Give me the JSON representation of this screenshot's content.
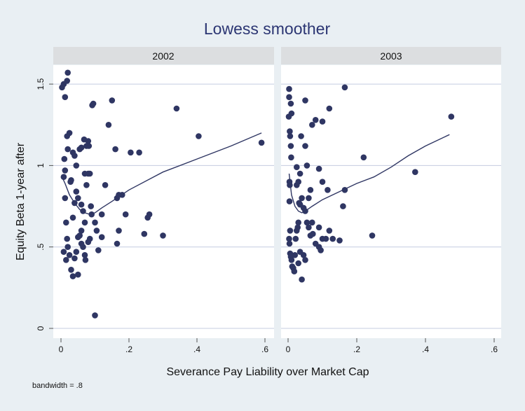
{
  "colors": {
    "outer_bg": "#e9eff3",
    "panel_bg": "#ffffff",
    "strip_bg": "#dcdee0",
    "grid": "#c4cce0",
    "marker": "#2f3663",
    "line": "#2f3663",
    "title": "#2c3673",
    "text": "#111111"
  },
  "chart_data": {
    "type": "scatter",
    "title": "Lowess smoother",
    "xlabel": "Severance Pay Liability over Market Cap",
    "ylabel": "Equity Beta 1-year after",
    "note": "bandwidth = .8",
    "xlim": [
      0,
      0.6
    ],
    "ylim": [
      0,
      1.6
    ],
    "xticks": [
      0,
      0.2,
      0.4,
      0.6
    ],
    "xtick_labels": [
      "0",
      ".2",
      ".4",
      ".6"
    ],
    "yticks": [
      0,
      0.5,
      1,
      1.5
    ],
    "ytick_labels": [
      "0",
      ".5",
      "1",
      "1.5"
    ],
    "grid": true,
    "panels": [
      {
        "label": "2002",
        "points": [
          [
            0.003,
            1.48
          ],
          [
            0.008,
            1.5
          ],
          [
            0.012,
            1.42
          ],
          [
            0.018,
            1.52
          ],
          [
            0.02,
            1.57
          ],
          [
            0.025,
            1.2
          ],
          [
            0.018,
            1.18
          ],
          [
            0.02,
            1.1
          ],
          [
            0.01,
            1.04
          ],
          [
            0.012,
            0.97
          ],
          [
            0.008,
            0.93
          ],
          [
            0.012,
            0.8
          ],
          [
            0.015,
            0.65
          ],
          [
            0.018,
            0.55
          ],
          [
            0.02,
            0.5
          ],
          [
            0.025,
            0.45
          ],
          [
            0.008,
            0.47
          ],
          [
            0.015,
            0.42
          ],
          [
            0.03,
            0.36
          ],
          [
            0.035,
            0.32
          ],
          [
            0.04,
            0.43
          ],
          [
            0.045,
            0.47
          ],
          [
            0.05,
            0.56
          ],
          [
            0.055,
            0.57
          ],
          [
            0.06,
            0.52
          ],
          [
            0.05,
            0.33
          ],
          [
            0.035,
            0.68
          ],
          [
            0.04,
            0.77
          ],
          [
            0.05,
            0.8
          ],
          [
            0.06,
            0.76
          ],
          [
            0.065,
            0.72
          ],
          [
            0.045,
            0.84
          ],
          [
            0.03,
            0.91
          ],
          [
            0.028,
            0.9
          ],
          [
            0.035,
            1.08
          ],
          [
            0.04,
            1.06
          ],
          [
            0.045,
            1.0
          ],
          [
            0.055,
            1.1
          ],
          [
            0.06,
            1.11
          ],
          [
            0.068,
            1.16
          ],
          [
            0.075,
            1.12
          ],
          [
            0.08,
            1.15
          ],
          [
            0.082,
            1.12
          ],
          [
            0.07,
            0.95
          ],
          [
            0.075,
            0.88
          ],
          [
            0.08,
            0.95
          ],
          [
            0.085,
            0.95
          ],
          [
            0.088,
            0.75
          ],
          [
            0.09,
            0.7
          ],
          [
            0.07,
            0.65
          ],
          [
            0.06,
            0.6
          ],
          [
            0.065,
            0.5
          ],
          [
            0.07,
            0.45
          ],
          [
            0.072,
            0.42
          ],
          [
            0.08,
            0.53
          ],
          [
            0.085,
            0.55
          ],
          [
            0.1,
            0.65
          ],
          [
            0.105,
            0.6
          ],
          [
            0.11,
            0.48
          ],
          [
            0.12,
            0.56
          ],
          [
            0.12,
            0.7
          ],
          [
            0.095,
            1.38
          ],
          [
            0.092,
            1.37
          ],
          [
            0.13,
            0.88
          ],
          [
            0.14,
            1.25
          ],
          [
            0.15,
            1.4
          ],
          [
            0.16,
            1.1
          ],
          [
            0.165,
            0.8
          ],
          [
            0.17,
            0.82
          ],
          [
            0.165,
            0.52
          ],
          [
            0.17,
            0.6
          ],
          [
            0.18,
            0.82
          ],
          [
            0.19,
            0.7
          ],
          [
            0.205,
            1.08
          ],
          [
            0.23,
            1.08
          ],
          [
            0.245,
            0.58
          ],
          [
            0.255,
            0.68
          ],
          [
            0.26,
            0.7
          ],
          [
            0.3,
            0.57
          ],
          [
            0.34,
            1.35
          ],
          [
            0.405,
            1.18
          ],
          [
            0.59,
            1.14
          ],
          [
            0.1,
            0.08
          ]
        ],
        "lowess": [
          [
            0.003,
            0.93
          ],
          [
            0.012,
            0.89
          ],
          [
            0.025,
            0.82
          ],
          [
            0.04,
            0.77
          ],
          [
            0.055,
            0.73
          ],
          [
            0.07,
            0.71
          ],
          [
            0.085,
            0.7
          ],
          [
            0.1,
            0.71
          ],
          [
            0.12,
            0.74
          ],
          [
            0.15,
            0.78
          ],
          [
            0.2,
            0.85
          ],
          [
            0.3,
            0.96
          ],
          [
            0.4,
            1.04
          ],
          [
            0.5,
            1.12
          ],
          [
            0.59,
            1.2
          ]
        ]
      },
      {
        "label": "2003",
        "points": [
          [
            0.003,
            1.47
          ],
          [
            0.003,
            1.42
          ],
          [
            0.008,
            1.38
          ],
          [
            0.01,
            1.32
          ],
          [
            0.002,
            1.3
          ],
          [
            0.005,
            1.21
          ],
          [
            0.006,
            1.18
          ],
          [
            0.008,
            1.12
          ],
          [
            0.009,
            1.05
          ],
          [
            0.004,
            0.9
          ],
          [
            0.005,
            0.88
          ],
          [
            0.004,
            0.78
          ],
          [
            0.006,
            0.6
          ],
          [
            0.003,
            0.55
          ],
          [
            0.004,
            0.52
          ],
          [
            0.006,
            0.46
          ],
          [
            0.008,
            0.44
          ],
          [
            0.01,
            0.42
          ],
          [
            0.012,
            0.38
          ],
          [
            0.015,
            0.37
          ],
          [
            0.018,
            0.35
          ],
          [
            0.02,
            0.45
          ],
          [
            0.022,
            0.55
          ],
          [
            0.025,
            0.6
          ],
          [
            0.028,
            0.62
          ],
          [
            0.03,
            0.65
          ],
          [
            0.032,
            0.77
          ],
          [
            0.035,
            0.76
          ],
          [
            0.04,
            0.8
          ],
          [
            0.045,
            0.74
          ],
          [
            0.05,
            0.72
          ],
          [
            0.055,
            0.65
          ],
          [
            0.06,
            0.62
          ],
          [
            0.025,
            0.88
          ],
          [
            0.03,
            0.9
          ],
          [
            0.035,
            0.95
          ],
          [
            0.025,
            0.99
          ],
          [
            0.038,
            1.18
          ],
          [
            0.05,
            1.12
          ],
          [
            0.055,
            1.0
          ],
          [
            0.05,
            1.4
          ],
          [
            0.07,
            1.25
          ],
          [
            0.08,
            1.28
          ],
          [
            0.1,
            1.27
          ],
          [
            0.12,
            1.35
          ],
          [
            0.09,
            0.98
          ],
          [
            0.1,
            0.9
          ],
          [
            0.115,
            0.85
          ],
          [
            0.08,
            0.52
          ],
          [
            0.09,
            0.5
          ],
          [
            0.1,
            0.55
          ],
          [
            0.11,
            0.55
          ],
          [
            0.12,
            0.6
          ],
          [
            0.13,
            0.55
          ],
          [
            0.15,
            0.54
          ],
          [
            0.16,
            0.75
          ],
          [
            0.165,
            0.85
          ],
          [
            0.165,
            1.48
          ],
          [
            0.22,
            1.05
          ],
          [
            0.245,
            0.57
          ],
          [
            0.37,
            0.96
          ],
          [
            0.475,
            1.3
          ],
          [
            0.045,
            0.45
          ],
          [
            0.035,
            0.47
          ],
          [
            0.03,
            0.4
          ],
          [
            0.05,
            0.42
          ],
          [
            0.065,
            0.57
          ],
          [
            0.07,
            0.65
          ],
          [
            0.072,
            0.58
          ],
          [
            0.09,
            0.62
          ],
          [
            0.095,
            0.48
          ],
          [
            0.06,
            0.8
          ],
          [
            0.065,
            0.85
          ],
          [
            0.04,
            0.3
          ]
        ],
        "lowess": [
          [
            0.003,
            0.95
          ],
          [
            0.01,
            0.82
          ],
          [
            0.02,
            0.75
          ],
          [
            0.03,
            0.72
          ],
          [
            0.04,
            0.71
          ],
          [
            0.05,
            0.72
          ],
          [
            0.07,
            0.75
          ],
          [
            0.1,
            0.79
          ],
          [
            0.15,
            0.84
          ],
          [
            0.2,
            0.89
          ],
          [
            0.25,
            0.93
          ],
          [
            0.3,
            0.99
          ],
          [
            0.35,
            1.06
          ],
          [
            0.4,
            1.12
          ],
          [
            0.47,
            1.19
          ]
        ]
      }
    ]
  }
}
